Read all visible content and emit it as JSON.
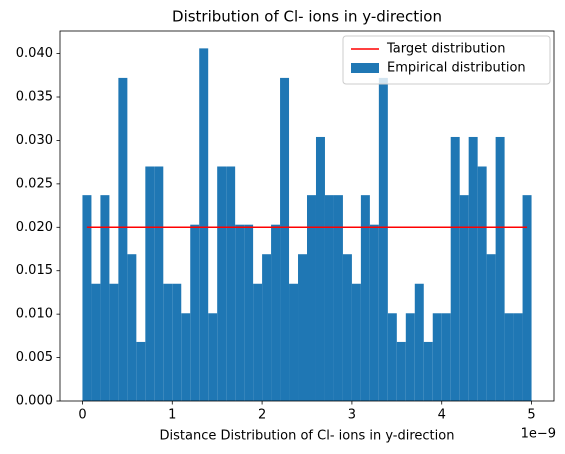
{
  "chart_data": {
    "type": "histogram",
    "title": "Distribution of Cl- ions in y-direction",
    "x_label": "Distance Distribution of Cl- ions in y-direction",
    "x_offset_label": "1e−9",
    "name": "Empirical distribution",
    "color": "#1f77b4",
    "bins": [
      0,
      0.1,
      0.2,
      0.3,
      0.4,
      0.5,
      0.6,
      0.7,
      0.8,
      0.9,
      1.0,
      1.1,
      1.2,
      1.3,
      1.4,
      1.5,
      1.6,
      1.7,
      1.8,
      1.9,
      2.0,
      2.1,
      2.2,
      2.3,
      2.4,
      2.5,
      2.6,
      2.7,
      2.8,
      2.9,
      3.0,
      3.1,
      3.2,
      3.3,
      3.4,
      3.5,
      3.6,
      3.7,
      3.8,
      3.9,
      4.0,
      4.1,
      4.2,
      4.3,
      4.4,
      4.5,
      4.6,
      4.7,
      4.8,
      4.9,
      5.0
    ],
    "values": [
      0.0237,
      0.0135,
      0.0237,
      0.0135,
      0.0372,
      0.0169,
      0.0068,
      0.027,
      0.027,
      0.0135,
      0.0135,
      0.0101,
      0.0203,
      0.0406,
      0.0101,
      0.027,
      0.027,
      0.0203,
      0.0203,
      0.0135,
      0.0169,
      0.0203,
      0.0372,
      0.0135,
      0.0169,
      0.0237,
      0.0304,
      0.0237,
      0.0237,
      0.0169,
      0.0135,
      0.0237,
      0.0203,
      0.0372,
      0.0101,
      0.0068,
      0.0101,
      0.0135,
      0.0068,
      0.0101,
      0.0101,
      0.0304,
      0.0237,
      0.0304,
      0.027,
      0.0169,
      0.0304,
      0.0101,
      0.0101,
      0.0237
    ],
    "lines": [
      {
        "name": "Target distribution",
        "color": "#ff0000",
        "x": [
          0.05,
          4.95
        ],
        "values": [
          0.02,
          0.02
        ]
      }
    ],
    "xlim": [
      -0.25,
      5.25
    ],
    "ylim": [
      0,
      0.0426
    ],
    "xticks": [
      0,
      1,
      2,
      3,
      4,
      5
    ],
    "yticks": [
      {
        "value": 0,
        "label": "0.000"
      },
      {
        "value": 0.005,
        "label": "0.005"
      },
      {
        "value": 0.01,
        "label": "0.010"
      },
      {
        "value": 0.015,
        "label": "0.015"
      },
      {
        "value": 0.02,
        "label": "0.020"
      },
      {
        "value": 0.025,
        "label": "0.025"
      },
      {
        "value": 0.03,
        "label": "0.030"
      },
      {
        "value": 0.035,
        "label": "0.035"
      },
      {
        "value": 0.04,
        "label": "0.040"
      }
    ],
    "legend": "upper right"
  }
}
